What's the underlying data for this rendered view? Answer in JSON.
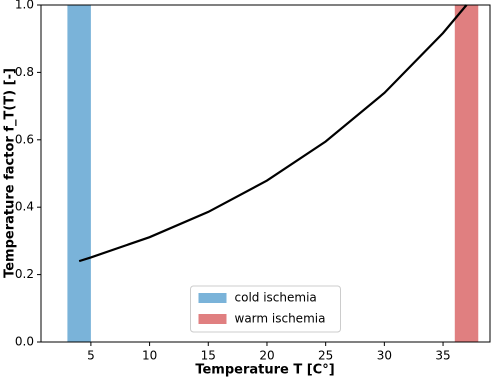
{
  "chart_data": {
    "type": "line",
    "xlabel": "Temperature T [C°]",
    "ylabel": "Temperature factor f_T(T) [-]",
    "x": [
      4,
      5,
      10,
      15,
      20,
      25,
      30,
      35,
      37
    ],
    "series": [
      {
        "color": "#000000",
        "values": [
          0.24,
          0.251,
          0.311,
          0.386,
          0.479,
          0.595,
          0.739,
          0.917,
          1.0
        ]
      }
    ],
    "spans": [
      {
        "name": "cold ischemia",
        "color": "#7ab3d9",
        "x": [
          3,
          5
        ]
      },
      {
        "name": "warm ischemia",
        "color": "#e07f80",
        "x": [
          36,
          38
        ]
      }
    ],
    "xlim": [
      0.75,
      39
    ],
    "ylim": [
      0,
      1
    ],
    "xticks": [
      5,
      10,
      15,
      20,
      25,
      30,
      35
    ],
    "yticks": [
      {
        "value": 0,
        "label": "0.0"
      },
      {
        "value": 0.2,
        "label": "0.2"
      },
      {
        "value": 0.4,
        "label": "0.4"
      },
      {
        "value": 0.6,
        "label": "0.6"
      },
      {
        "value": 0.8,
        "label": "0.8"
      },
      {
        "value": 1,
        "label": "1.0"
      }
    ],
    "legend": "lower center"
  }
}
